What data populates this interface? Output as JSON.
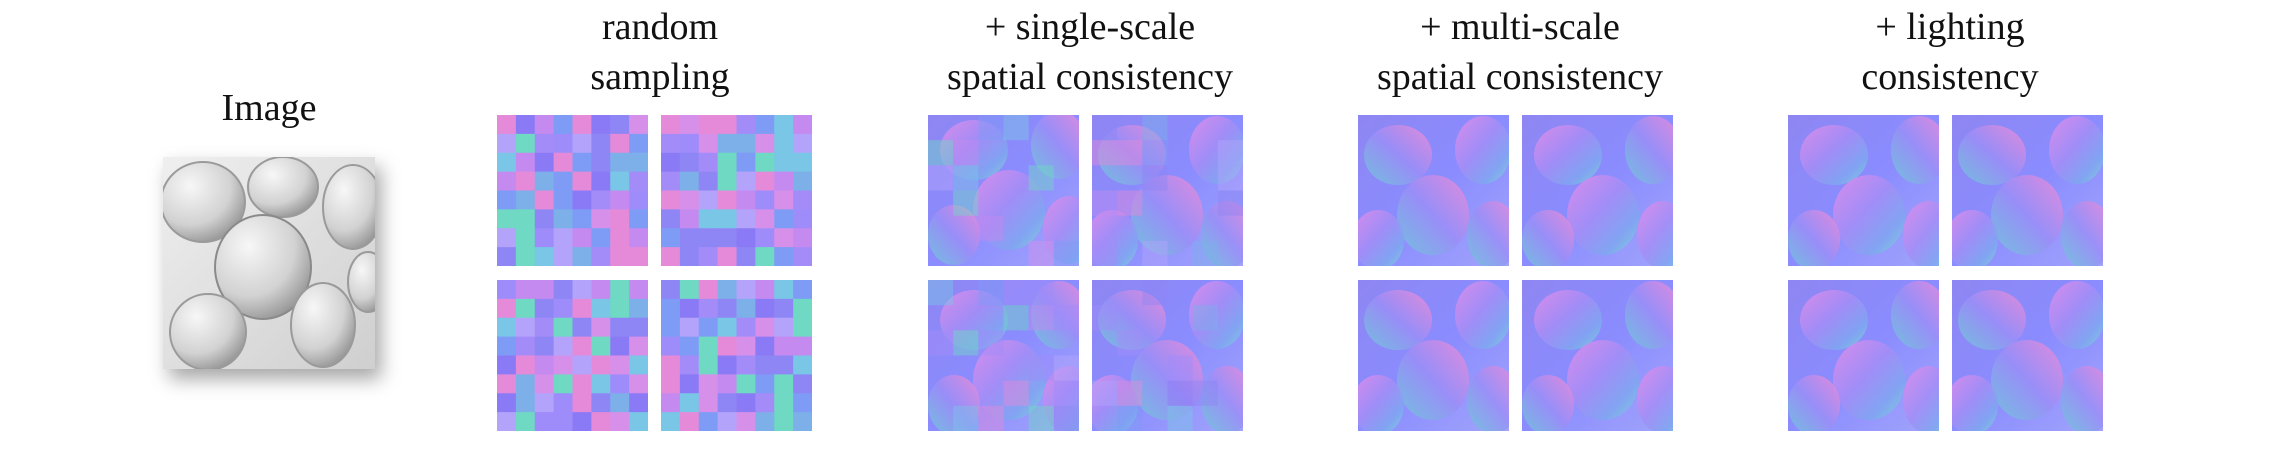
{
  "figure": {
    "input_label": "Image",
    "columns": [
      {
        "title_line1": "random",
        "title_line2": "sampling"
      },
      {
        "title_line1": "+ single-scale",
        "title_line2": "spatial consistency"
      },
      {
        "title_line1": "+ multi-scale",
        "title_line2": "spatial consistency"
      },
      {
        "title_line1": "+ lighting",
        "title_line2": "consistency"
      }
    ]
  }
}
